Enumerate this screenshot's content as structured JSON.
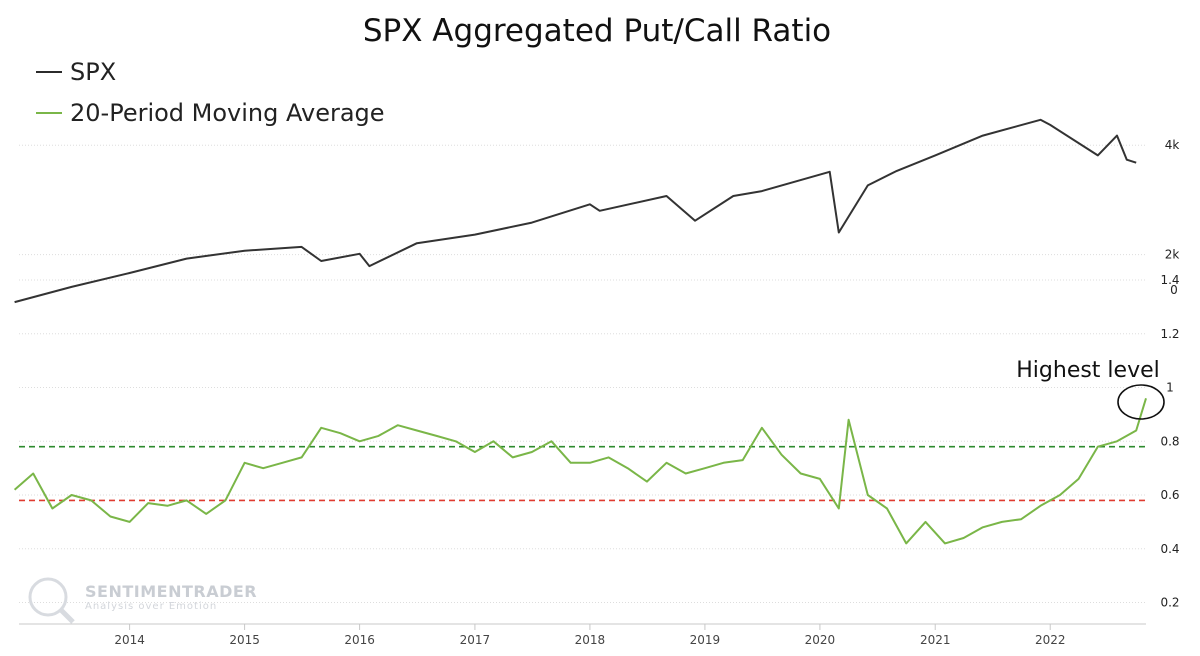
{
  "title": "SPX Aggregated Put/Call Ratio",
  "legend": [
    {
      "label": "SPX",
      "color": "#2b2b2b",
      "marker": "—"
    },
    {
      "label": "20-Period Moving Average",
      "color": "#7ab648",
      "marker": "—"
    }
  ],
  "annotation": "Highest level",
  "watermark": {
    "brand": "SENTIMENTRADER",
    "tagline": "Analysis over Emotion"
  },
  "colors": {
    "spx": "#333333",
    "ma": "#7ab648",
    "upper_ref": "#2e8b2e",
    "lower_ref": "#e03b30",
    "grid": "#dddddd"
  },
  "chart_data": [
    {
      "type": "line",
      "name": "SPX",
      "scale": "log",
      "ylim": [
        1500,
        5000
      ],
      "y_ticks": [
        {
          "value": 2000,
          "label": "2k"
        },
        {
          "value": 4000,
          "label": "4k"
        }
      ],
      "x": [
        "2013-01",
        "2013-07",
        "2014-01",
        "2014-07",
        "2015-01",
        "2015-07",
        "2015-09",
        "2016-01",
        "2016-02",
        "2016-07",
        "2017-01",
        "2017-07",
        "2018-01",
        "2018-02",
        "2018-09",
        "2018-12",
        "2019-04",
        "2019-07",
        "2020-02",
        "2020-03",
        "2020-06",
        "2020-09",
        "2021-01",
        "2021-06",
        "2021-12",
        "2022-01",
        "2022-06",
        "2022-08",
        "2022-09",
        "2022-10"
      ],
      "values": [
        1480,
        1630,
        1780,
        1950,
        2050,
        2100,
        1920,
        2010,
        1860,
        2150,
        2270,
        2450,
        2750,
        2640,
        2900,
        2480,
        2900,
        2990,
        3380,
        2300,
        3100,
        3400,
        3750,
        4250,
        4700,
        4550,
        3750,
        4250,
        3650,
        3580
      ]
    },
    {
      "type": "line",
      "name": "20-Period Moving Average",
      "ylim": [
        0.15,
        1.4
      ],
      "y_ticks": [
        {
          "value": 0.2,
          "label": "0.2"
        },
        {
          "value": 0.4,
          "label": "0.4"
        },
        {
          "value": 0.6,
          "label": "0.6"
        },
        {
          "value": 0.8,
          "label": "0.8"
        },
        {
          "value": 1,
          "label": "1"
        },
        {
          "value": 1.2,
          "label": "1.2"
        },
        {
          "value": 1.4,
          "label": "1.4"
        }
      ],
      "extra_tick_label": "0",
      "reference_lines": [
        0.78,
        0.58
      ],
      "x": [
        "2013-01",
        "2013-03",
        "2013-05",
        "2013-07",
        "2013-09",
        "2013-11",
        "2014-01",
        "2014-03",
        "2014-05",
        "2014-07",
        "2014-09",
        "2014-11",
        "2015-01",
        "2015-03",
        "2015-05",
        "2015-07",
        "2015-09",
        "2015-11",
        "2016-01",
        "2016-03",
        "2016-05",
        "2016-07",
        "2016-09",
        "2016-11",
        "2017-01",
        "2017-03",
        "2017-05",
        "2017-07",
        "2017-09",
        "2017-11",
        "2018-01",
        "2018-03",
        "2018-05",
        "2018-07",
        "2018-09",
        "2018-11",
        "2019-01",
        "2019-03",
        "2019-05",
        "2019-07",
        "2019-09",
        "2019-11",
        "2020-01",
        "2020-03",
        "2020-04",
        "2020-06",
        "2020-08",
        "2020-10",
        "2020-12",
        "2021-02",
        "2021-04",
        "2021-06",
        "2021-08",
        "2021-10",
        "2021-12",
        "2022-02",
        "2022-04",
        "2022-06",
        "2022-08",
        "2022-10",
        "2022-11"
      ],
      "values": [
        0.62,
        0.68,
        0.55,
        0.6,
        0.58,
        0.52,
        0.5,
        0.57,
        0.56,
        0.58,
        0.53,
        0.58,
        0.72,
        0.7,
        0.72,
        0.74,
        0.85,
        0.83,
        0.8,
        0.82,
        0.86,
        0.84,
        0.82,
        0.8,
        0.76,
        0.8,
        0.74,
        0.76,
        0.8,
        0.72,
        0.72,
        0.74,
        0.7,
        0.65,
        0.72,
        0.68,
        0.7,
        0.72,
        0.73,
        0.85,
        0.75,
        0.68,
        0.66,
        0.55,
        0.88,
        0.6,
        0.55,
        0.42,
        0.5,
        0.42,
        0.44,
        0.48,
        0.5,
        0.51,
        0.56,
        0.6,
        0.66,
        0.78,
        0.8,
        0.84,
        0.96
      ]
    }
  ],
  "x_axis": {
    "ticks": [
      "2014",
      "2015",
      "2016",
      "2017",
      "2018",
      "2019",
      "2020",
      "2021",
      "2022"
    ]
  }
}
